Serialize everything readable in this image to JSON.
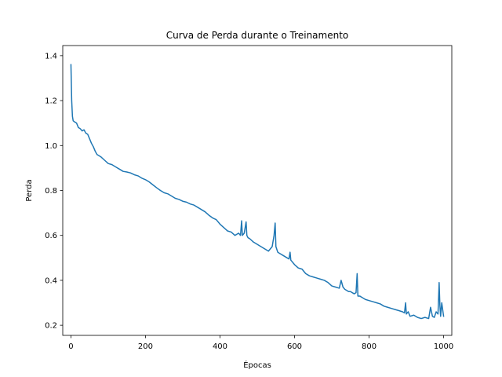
{
  "chart_data": {
    "type": "line",
    "title": "Curva de Perda durante o Treinamento",
    "xlabel": "Épocas",
    "ylabel": "Perda",
    "xlim": [
      -22,
      1022
    ],
    "ylim": [
      0.155,
      1.445
    ],
    "xticks": [
      0,
      200,
      400,
      600,
      800,
      1000
    ],
    "yticks": [
      0.2,
      0.4,
      0.6,
      0.8,
      1.0,
      1.2,
      1.4
    ],
    "ytick_labels": [
      "0.2",
      "0.4",
      "0.6",
      "0.8",
      "1.0",
      "1.2",
      "1.4"
    ],
    "grid": false,
    "legend": "none",
    "series": [
      {
        "color": "#1f77b4",
        "x": [
          0,
          2,
          4,
          6,
          10,
          15,
          20,
          25,
          30,
          35,
          40,
          45,
          50,
          55,
          60,
          65,
          70,
          75,
          80,
          90,
          100,
          110,
          120,
          130,
          140,
          150,
          160,
          170,
          180,
          190,
          200,
          210,
          220,
          230,
          240,
          250,
          260,
          270,
          280,
          290,
          300,
          310,
          320,
          330,
          340,
          350,
          360,
          370,
          380,
          390,
          400,
          410,
          420,
          430,
          440,
          450,
          455,
          458,
          460,
          465,
          470,
          472,
          475,
          480,
          490,
          500,
          510,
          520,
          530,
          540,
          545,
          548,
          550,
          555,
          560,
          570,
          580,
          585,
          588,
          590,
          600,
          610,
          620,
          630,
          640,
          650,
          660,
          670,
          680,
          690,
          700,
          710,
          720,
          725,
          730,
          735,
          740,
          745,
          750,
          760,
          765,
          768,
          770,
          775,
          780,
          790,
          800,
          810,
          820,
          830,
          840,
          850,
          860,
          870,
          880,
          890,
          895,
          898,
          900,
          905,
          910,
          920,
          930,
          940,
          950,
          960,
          965,
          970,
          975,
          980,
          985,
          988,
          990,
          992,
          995,
          1000
        ],
        "y": [
          1.36,
          1.2,
          1.13,
          1.11,
          1.105,
          1.1,
          1.08,
          1.075,
          1.065,
          1.07,
          1.055,
          1.05,
          1.03,
          1.01,
          0.995,
          0.975,
          0.96,
          0.955,
          0.95,
          0.935,
          0.92,
          0.915,
          0.905,
          0.895,
          0.885,
          0.882,
          0.878,
          0.87,
          0.865,
          0.855,
          0.848,
          0.838,
          0.825,
          0.812,
          0.8,
          0.79,
          0.785,
          0.775,
          0.765,
          0.76,
          0.752,
          0.748,
          0.74,
          0.735,
          0.725,
          0.715,
          0.705,
          0.69,
          0.678,
          0.67,
          0.65,
          0.635,
          0.62,
          0.615,
          0.6,
          0.61,
          0.6,
          0.665,
          0.6,
          0.61,
          0.66,
          0.6,
          0.59,
          0.585,
          0.57,
          0.56,
          0.55,
          0.54,
          0.53,
          0.55,
          0.6,
          0.655,
          0.55,
          0.525,
          0.52,
          0.51,
          0.5,
          0.495,
          0.525,
          0.49,
          0.47,
          0.455,
          0.45,
          0.43,
          0.42,
          0.415,
          0.41,
          0.405,
          0.4,
          0.39,
          0.375,
          0.37,
          0.365,
          0.4,
          0.37,
          0.36,
          0.355,
          0.35,
          0.35,
          0.34,
          0.345,
          0.43,
          0.33,
          0.33,
          0.325,
          0.315,
          0.31,
          0.305,
          0.3,
          0.295,
          0.285,
          0.28,
          0.275,
          0.27,
          0.265,
          0.26,
          0.255,
          0.3,
          0.25,
          0.26,
          0.24,
          0.245,
          0.235,
          0.23,
          0.235,
          0.23,
          0.28,
          0.24,
          0.235,
          0.26,
          0.25,
          0.39,
          0.29,
          0.24,
          0.3,
          0.24
        ]
      }
    ]
  }
}
